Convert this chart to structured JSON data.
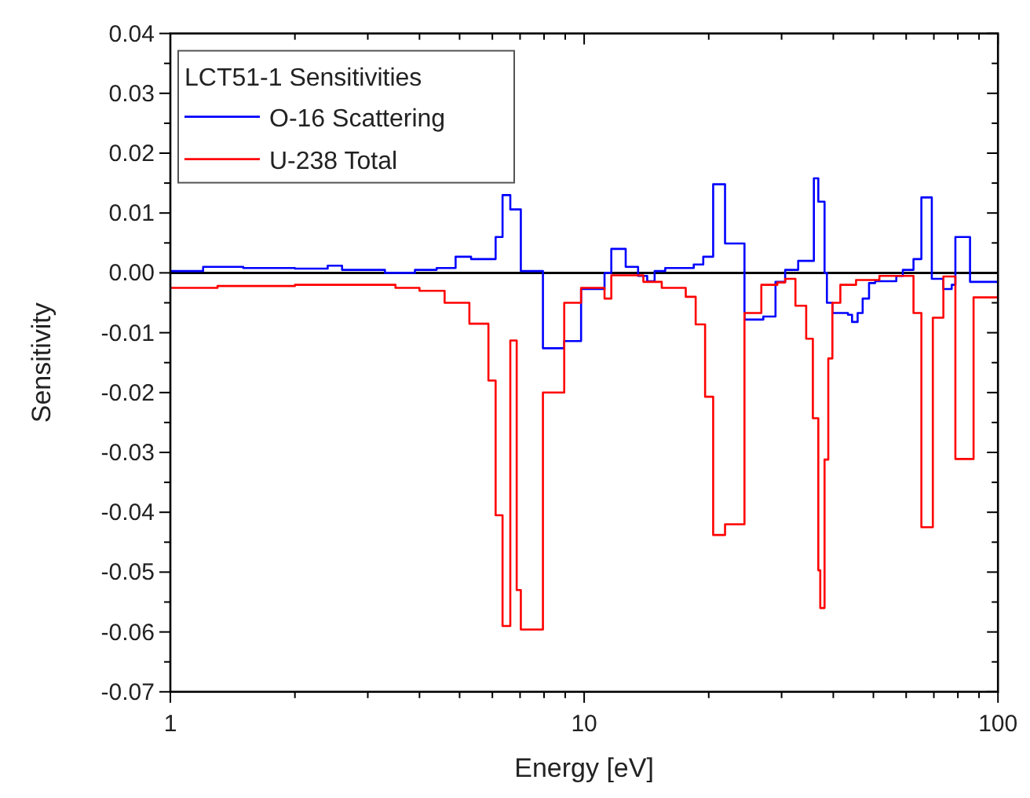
{
  "chart_data": {
    "type": "step",
    "xlabel": "Energy [eV]",
    "ylabel": "Sensitivity",
    "legend_title": "LCT51-1 Sensitivities",
    "legend": "top left",
    "log": "x",
    "grid": false,
    "xlim": [
      1,
      100
    ],
    "ylim": [
      -0.07,
      0.04
    ],
    "xticks": [
      1,
      {
        "value": 2,
        "label": null
      },
      {
        "value": 3,
        "label": null
      },
      {
        "value": 4,
        "label": null
      },
      {
        "value": 5,
        "label": null
      },
      {
        "value": 6,
        "label": null
      },
      {
        "value": 7,
        "label": null
      },
      {
        "value": 8,
        "label": null
      },
      {
        "value": 9,
        "label": null
      },
      10,
      {
        "value": 20,
        "label": null
      },
      {
        "value": 30,
        "label": null
      },
      {
        "value": 40,
        "label": null
      },
      {
        "value": 50,
        "label": null
      },
      {
        "value": 60,
        "label": null
      },
      {
        "value": 70,
        "label": null
      },
      {
        "value": 80,
        "label": null
      },
      {
        "value": 90,
        "label": null
      },
      100
    ],
    "yticks": [
      {
        "value": -0.07,
        "label": "-0.07"
      },
      {
        "value": -0.065,
        "label": null
      },
      {
        "value": -0.06,
        "label": "-0.06"
      },
      {
        "value": -0.055,
        "label": null
      },
      {
        "value": -0.05,
        "label": "-0.05"
      },
      {
        "value": -0.045,
        "label": null
      },
      {
        "value": -0.04,
        "label": "-0.04"
      },
      {
        "value": -0.035,
        "label": null
      },
      {
        "value": -0.03,
        "label": "-0.03"
      },
      {
        "value": -0.025,
        "label": null
      },
      {
        "value": -0.02,
        "label": "-0.02"
      },
      {
        "value": -0.015,
        "label": null
      },
      {
        "value": -0.01,
        "label": "-0.01"
      },
      {
        "value": -0.005,
        "label": null
      },
      {
        "value": 0,
        "label": "0.00"
      },
      {
        "value": 0.005,
        "label": null
      },
      {
        "value": 0.01,
        "label": "0.01"
      },
      {
        "value": 0.015,
        "label": null
      },
      {
        "value": 0.02,
        "label": "0.02"
      },
      {
        "value": 0.025,
        "label": null
      },
      {
        "value": 0.03,
        "label": "0.03"
      },
      {
        "value": 0.035,
        "label": null
      },
      {
        "value": 0.04,
        "label": "0.04"
      }
    ],
    "ref_lines": [
      {
        "axis": "y",
        "value": 0,
        "color": "#000000"
      }
    ],
    "series": [
      {
        "name": "O-16 Scattering",
        "color": "#0000ff",
        "x": [
          1,
          1.2,
          1.5,
          2,
          2.4,
          2.6,
          3.3,
          3.9,
          4.4,
          4.89,
          5.33,
          6.11,
          6.35,
          6.63,
          7.03,
          7.95,
          8.95,
          9.83,
          11.2,
          11.63,
          12.6,
          13.5,
          14.2,
          14.8,
          15.7,
          18.4,
          19.4,
          20.5,
          21.9,
          24.4,
          27.1,
          29.0,
          30.6,
          32.9,
          35.9,
          36.8,
          38.1,
          38.6,
          39.8,
          43.4,
          44.4,
          45.8,
          47.1,
          48.8,
          50.5,
          56.8,
          58.9,
          62.5,
          65.3,
          69.2,
          73.8,
          77.3,
          78.9,
          85.6,
          100
        ],
        "values": [
          0.0003,
          0.001,
          0.0008,
          0.0007,
          0.0012,
          0.0005,
          0,
          0.0005,
          0.0008,
          0.0027,
          0.0023,
          0.006,
          0.013,
          0.0106,
          0.0003,
          -0.0126,
          -0.0114,
          -0.0027,
          0,
          0.004,
          0.001,
          -0.0005,
          -0.0014,
          0.0003,
          0.0008,
          0.0014,
          0.0027,
          0.0148,
          0.0049,
          -0.0078,
          -0.0073,
          -0.0015,
          0.0005,
          0.002,
          0.0158,
          0.0119,
          0,
          -0.005,
          -0.0067,
          -0.007,
          -0.0082,
          -0.0067,
          -0.0043,
          -0.0017,
          -0.0014,
          -0.0005,
          0.0005,
          0.0023,
          0.0126,
          -0.001,
          -0.0027,
          -0.002,
          0.006,
          -0.0015,
          -0.0015
        ]
      },
      {
        "name": "U-238 Total",
        "color": "#ff0000",
        "x": [
          1,
          1.3,
          2,
          2.8,
          3.5,
          4,
          4.6,
          5.28,
          5.87,
          6.11,
          6.35,
          6.63,
          6.87,
          7.03,
          7.95,
          8.95,
          9.83,
          11.2,
          11.63,
          13.9,
          15.4,
          17.6,
          18.6,
          19.6,
          20.5,
          21.9,
          24.4,
          26.8,
          29.3,
          30.6,
          32.4,
          34.4,
          35.7,
          36.8,
          37.2,
          38.1,
          38.9,
          39.8,
          41.6,
          45.4,
          51.7,
          62.5,
          65.3,
          69.6,
          73.8,
          78.9,
          87.3,
          100
        ],
        "values": [
          -0.0025,
          -0.0022,
          -0.002,
          -0.002,
          -0.0025,
          -0.003,
          -0.005,
          -0.0085,
          -0.018,
          -0.0405,
          -0.059,
          -0.0113,
          -0.053,
          -0.0596,
          -0.02,
          -0.005,
          -0.0025,
          -0.0043,
          -0.0004,
          -0.0015,
          -0.0025,
          -0.004,
          -0.0086,
          -0.0207,
          -0.0438,
          -0.042,
          -0.0067,
          -0.002,
          -0.0016,
          -0.001,
          -0.0055,
          -0.011,
          -0.0243,
          -0.0497,
          -0.056,
          -0.0312,
          -0.0143,
          -0.005,
          -0.002,
          -0.0012,
          -0.0005,
          -0.0067,
          -0.0425,
          -0.0075,
          -0.0006,
          -0.0311,
          -0.0041,
          -0.0041
        ]
      }
    ]
  }
}
